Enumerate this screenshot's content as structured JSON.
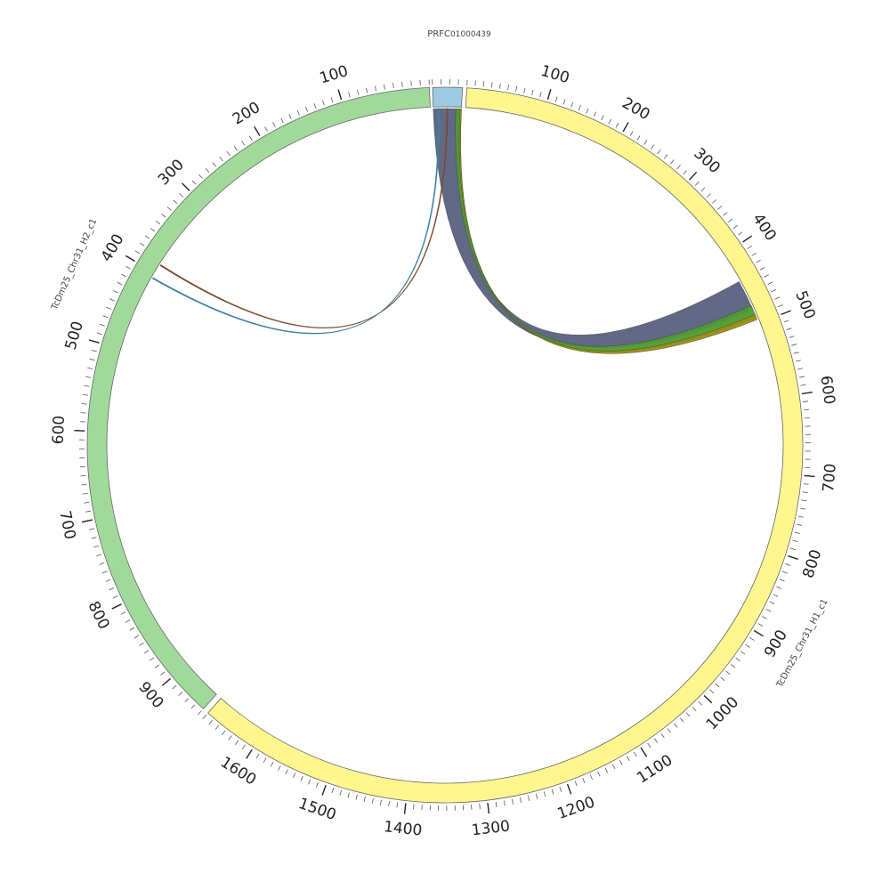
{
  "colors": {
    "background": "#ffffff",
    "outline": "#666666",
    "tick": "#555555",
    "link_dark": "#5a6180",
    "link_green": "#4f9a32",
    "link_olive": "#9a8f14",
    "link_thin_a": "#7a4a30",
    "link_thin_b": "#3d7fa0"
  },
  "segments": [
    {
      "label": "PRFC01000439",
      "label_main": "PRFC",
      "label_sub": "01000439",
      "color": "#9ecae1",
      "length": 35,
      "ticks": []
    },
    {
      "label": "TcDm25_Chr31_H1_c1",
      "color": "#fff68f",
      "length": 1670,
      "ticks": [
        "100",
        "200",
        "300",
        "400",
        "500",
        "600",
        "700",
        "800",
        "900",
        "1000",
        "1100",
        "1200",
        "1300",
        "1400",
        "1500",
        "1600"
      ]
    },
    {
      "label": "TcDm25_Chr31_H2_c1",
      "color": "#a1d99b",
      "length": 950,
      "ticks": [
        "100",
        "200",
        "300",
        "400",
        "500",
        "600",
        "700",
        "800",
        "900"
      ]
    }
  ],
  "links": [
    {
      "from_segment": "PRFC01000439",
      "from_start": 0,
      "from_end": 32,
      "to_segment": "TcDm25_Chr31_H1_c1",
      "to_start": 440,
      "to_end": 480,
      "color": "#5a6180"
    },
    {
      "from_segment": "PRFC01000439",
      "from_start": 28,
      "from_end": 35,
      "to_segment": "TcDm25_Chr31_H1_c1",
      "to_start": 475,
      "to_end": 492,
      "color": "#4f9a32"
    },
    {
      "from_segment": "PRFC01000439",
      "from_start": 33,
      "from_end": 35,
      "to_segment": "TcDm25_Chr31_H1_c1",
      "to_start": 488,
      "to_end": 495,
      "color": "#9a8f14"
    },
    {
      "from_segment": "PRFC01000439",
      "from_start": 17,
      "from_end": 18,
      "to_segment": "TcDm25_Chr31_H2_c1",
      "to_start": 388,
      "to_end": 389,
      "color": "#7a4a30"
    },
    {
      "from_segment": "PRFC01000439",
      "from_start": 6,
      "from_end": 7,
      "to_segment": "TcDm25_Chr31_H2_c1",
      "to_start": 406,
      "to_end": 407,
      "color": "#3d7fa0"
    }
  ]
}
